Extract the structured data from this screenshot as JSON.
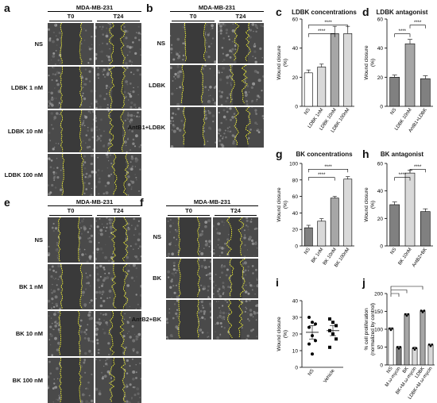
{
  "panels": {
    "a": {
      "label": "a",
      "cell_line": "MDA-MB-231",
      "columns": [
        "T0",
        "T24"
      ],
      "rows": [
        "NS",
        "LDBK 1 nM",
        "LDBK 10 nM",
        "LDBK 100 nM"
      ]
    },
    "b": {
      "label": "b",
      "cell_line": "MDA-MB-231",
      "columns": [
        "T0",
        "T24"
      ],
      "rows": [
        "NS",
        "LDBK",
        "AntB1+LDBK"
      ]
    },
    "e": {
      "label": "e",
      "cell_line": "MDA-MB-231",
      "columns": [
        "T0",
        "T24"
      ],
      "rows": [
        "NS",
        "BK 1 nM",
        "BK 10 nM",
        "BK 100 nM"
      ]
    },
    "f": {
      "label": "f",
      "cell_line": "MDA-MB-231",
      "columns": [
        "T0",
        "T24"
      ],
      "rows": [
        "NS",
        "BK",
        "AntB2+BK"
      ]
    }
  },
  "colors": {
    "border_line": "#ffff33",
    "image_gray": "#4a4a4a",
    "bar_light": "#d9d9d9",
    "bar_mid": "#a6a6a6",
    "bar_dark": "#808080"
  },
  "chart_data": [
    {
      "id": "c",
      "label": "c",
      "type": "bar",
      "title": "LDBK concentrations",
      "ylabel": "Wound closure\n(%)",
      "categories": [
        "NS",
        "LDBK 1nM",
        "LDBK 10nM",
        "LDBK 100nM"
      ],
      "values": [
        23,
        27,
        50,
        50
      ],
      "errors": [
        2,
        2,
        5,
        5
      ],
      "ylim": [
        0,
        60
      ],
      "yticks": [
        0,
        20,
        40,
        60
      ],
      "significance": [
        "****",
        "****"
      ]
    },
    {
      "id": "d",
      "label": "d",
      "type": "bar",
      "title": "LDBK antagonist",
      "ylabel": "Wound closure\n(%)",
      "categories": [
        "NS",
        "LDBK 10nM",
        "AntB1+LDBK"
      ],
      "values": [
        20,
        43,
        19
      ],
      "errors": [
        1.5,
        3,
        2
      ],
      "ylim": [
        0,
        60
      ],
      "yticks": [
        0,
        20,
        40,
        60
      ],
      "significance": [
        "****",
        "****"
      ]
    },
    {
      "id": "g",
      "label": "g",
      "type": "bar",
      "title": "BK concentrations",
      "ylabel": "Wound closure\n(%)",
      "categories": [
        "NS",
        "BK 1nM",
        "BK 10nM",
        "BK 100nM"
      ],
      "values": [
        22,
        30,
        58,
        81
      ],
      "errors": [
        3,
        3,
        2,
        3
      ],
      "ylim": [
        0,
        100
      ],
      "yticks": [
        0,
        20,
        40,
        60,
        80,
        100
      ],
      "significance": [
        "****",
        "****"
      ]
    },
    {
      "id": "h",
      "label": "h",
      "type": "bar",
      "title": "BK antagonist",
      "ylabel": "Wound closure\n(%)",
      "categories": [
        "NS",
        "BK 10nM",
        "AntB2+BK"
      ],
      "values": [
        30,
        53,
        25
      ],
      "errors": [
        2,
        2,
        2
      ],
      "ylim": [
        0,
        60
      ],
      "yticks": [
        0,
        20,
        40,
        60
      ],
      "significance": [
        "****",
        "****"
      ]
    },
    {
      "id": "i",
      "label": "i",
      "type": "scatter",
      "title": "",
      "ylabel": "Wound closure\n(%)",
      "categories": [
        "NS",
        "Vehicle"
      ],
      "means": [
        21,
        22
      ],
      "errors": [
        4,
        3
      ],
      "points": [
        [
          30,
          27,
          26,
          24,
          19,
          16,
          14,
          8
        ],
        [
          29,
          27,
          25,
          22,
          20,
          17,
          12
        ]
      ],
      "ylim": [
        0,
        40
      ],
      "yticks": [
        0,
        10,
        20,
        30,
        40
      ]
    },
    {
      "id": "j",
      "label": "j",
      "type": "bar",
      "title": "",
      "ylabel": "% cell proliferation\n(normalized by control)",
      "categories": [
        "NS",
        "M ω-mycin",
        "BK",
        "BK+M ω-mycin",
        "LDBK",
        "LDBK+M ω-mycin"
      ],
      "values": [
        100,
        48,
        140,
        45,
        150,
        55
      ],
      "errors": [
        4,
        4,
        3,
        5,
        3,
        3
      ],
      "ylim": [
        0,
        200
      ],
      "yticks": [
        0,
        50,
        100,
        150,
        200
      ]
    }
  ]
}
